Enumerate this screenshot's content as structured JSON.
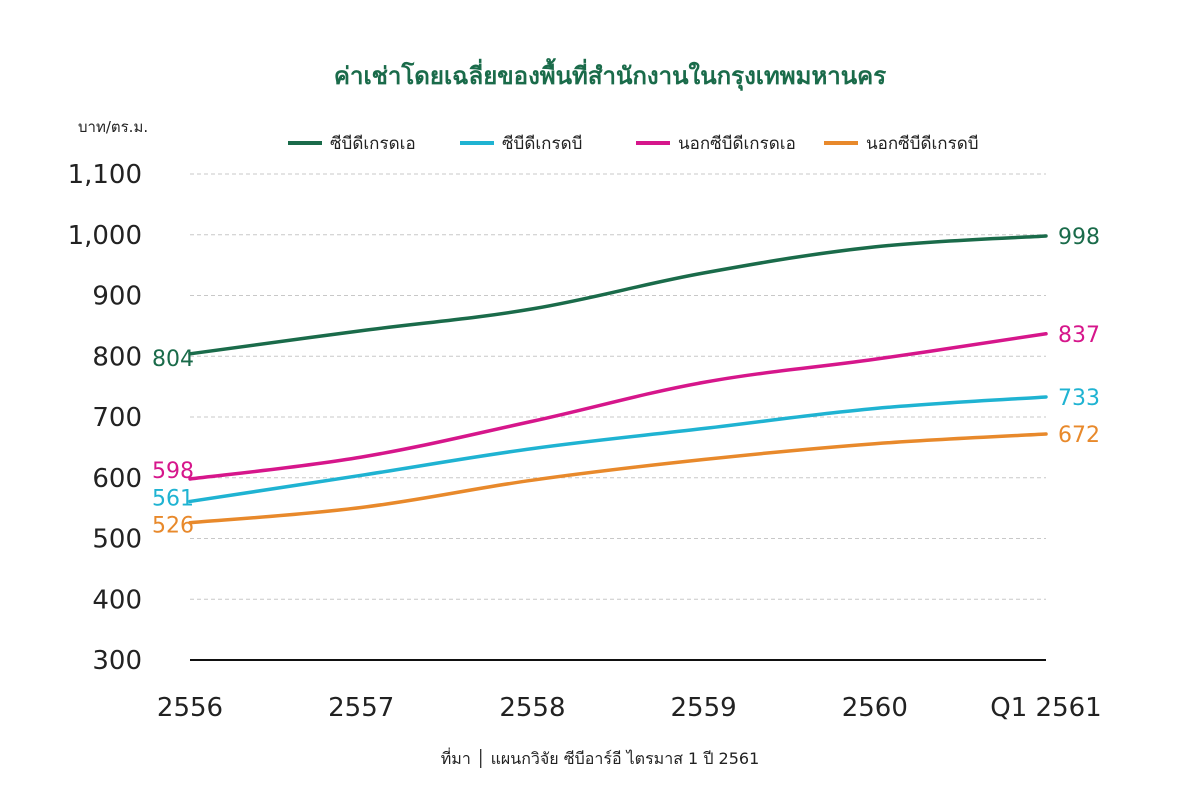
{
  "chart_data": {
    "type": "line",
    "title": "ค่าเช่าโดยเฉลี่ยของพื้นที่สำนักงานในกรุงเทพมหานคร",
    "ylabel": "บาท/ตร.ม.",
    "xlabel": "",
    "categories": [
      "2556",
      "2557",
      "2558",
      "2559",
      "2560",
      "Q1 2561"
    ],
    "ylim": [
      300,
      1100
    ],
    "yticks": [
      300,
      400,
      500,
      600,
      700,
      800,
      900,
      1000,
      1100
    ],
    "ytick_labels": [
      "300",
      "400",
      "500",
      "600",
      "700",
      "800",
      "900",
      "1,000",
      "1,100"
    ],
    "grid": true,
    "legend_position": "top",
    "series": [
      {
        "name": "ซีบีดีเกรดเอ",
        "color": "#1a6b4a",
        "values": [
          804,
          842,
          878,
          937,
          980,
          998
        ]
      },
      {
        "name": "ซีบีดีเกรดบี",
        "color": "#1fb3d2",
        "values": [
          561,
          604,
          648,
          681,
          714,
          733
        ]
      },
      {
        "name": "นอกซีบีดีเกรดเอ",
        "color": "#d6168b",
        "values": [
          598,
          634,
          693,
          757,
          795,
          837
        ]
      },
      {
        "name": "นอกซีบีดีเกรดบี",
        "color": "#e8892b",
        "values": [
          526,
          551,
          596,
          630,
          656,
          672
        ]
      }
    ],
    "start_labels": [
      "804",
      "561",
      "598",
      "526"
    ],
    "end_labels": [
      "998",
      "733",
      "837",
      "672"
    ],
    "source": "ที่มา  │  แผนกวิจัย ซีบีอาร์อี  ไตรมาส 1 ปี 2561"
  }
}
